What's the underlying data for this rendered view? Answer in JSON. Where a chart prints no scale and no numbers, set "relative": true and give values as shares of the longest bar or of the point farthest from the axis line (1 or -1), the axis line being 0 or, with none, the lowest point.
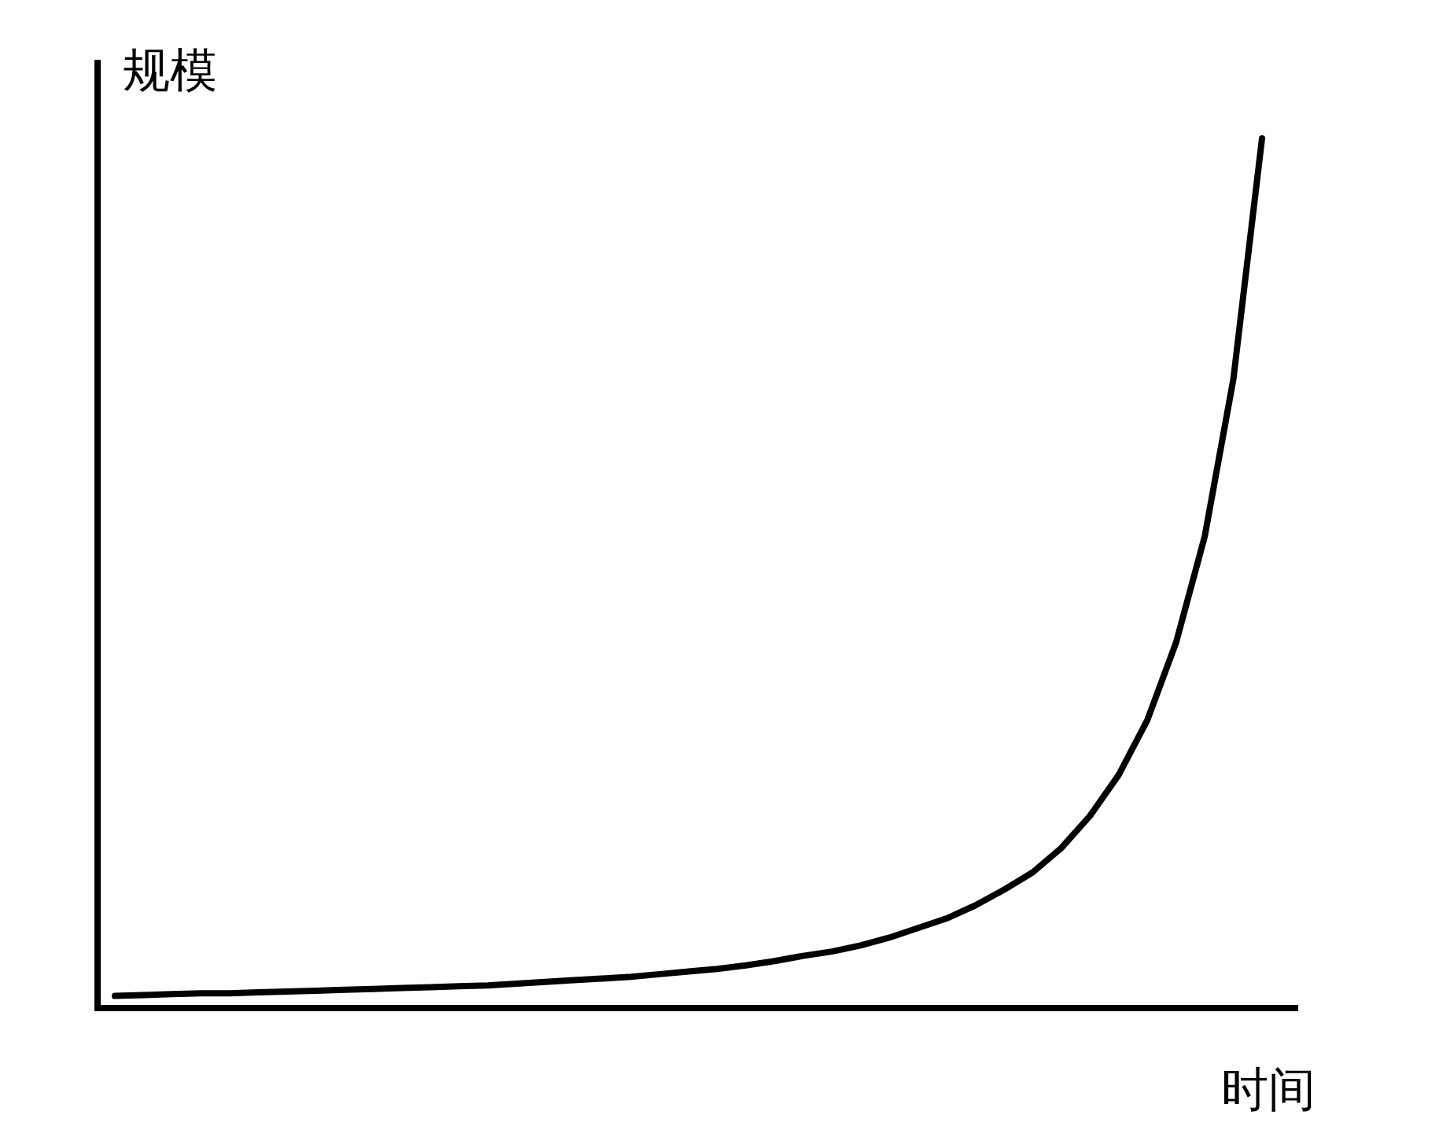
{
  "chart_data": {
    "type": "line",
    "relative": true,
    "xlabel": "时间",
    "ylabel": "规模",
    "categories": [
      null,
      null,
      null,
      null,
      null,
      null,
      null,
      null,
      null,
      null,
      null,
      null,
      null,
      null,
      null,
      null,
      null,
      null,
      null,
      null,
      null,
      null,
      null,
      null,
      null,
      null,
      null,
      null,
      null,
      null,
      null,
      null,
      null,
      null,
      null,
      null,
      null,
      null,
      null,
      null,
      null
    ],
    "series": [
      {
        "color": "#000000",
        "values": [
          0.014,
          0.015,
          0.016,
          0.017,
          0.017,
          0.018,
          0.019,
          0.02,
          0.021,
          0.022,
          0.023,
          0.024,
          0.025,
          0.026,
          0.028,
          0.03,
          0.032,
          0.034,
          0.036,
          0.039,
          0.042,
          0.045,
          0.049,
          0.054,
          0.06,
          0.065,
          0.072,
          0.081,
          0.092,
          0.103,
          0.118,
          0.136,
          0.156,
          0.184,
          0.221,
          0.268,
          0.331,
          0.42,
          0.542,
          0.723,
          1
        ]
      }
    ]
  }
}
